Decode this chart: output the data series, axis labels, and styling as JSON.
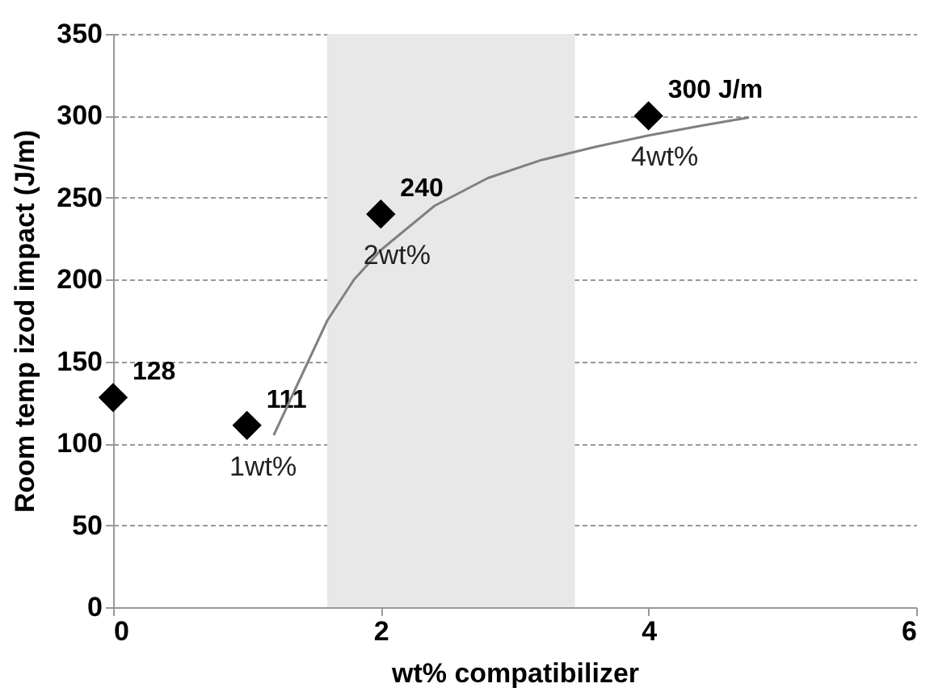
{
  "chart_data": {
    "type": "scatter",
    "xlabel": "wt% compatibilizer",
    "ylabel": "Room temp izod impact (J/m)",
    "x": [
      0,
      1,
      2,
      4
    ],
    "series": [
      {
        "color": "#000000",
        "marker": "diamond",
        "values": [
          128,
          111,
          240,
          300
        ],
        "value_labels": [
          "128",
          "111",
          "240",
          "300 J/m"
        ]
      },
      {
        "type": "line",
        "color": "#808080",
        "line_style": "solid",
        "x": [
          1.2,
          1.4,
          1.6,
          1.8,
          2.0,
          2.4,
          2.8,
          3.2,
          3.6,
          4.0,
          4.4,
          4.75
        ],
        "values": [
          105,
          140,
          175,
          200,
          218,
          245,
          262,
          273,
          281,
          288,
          294,
          299
        ]
      }
    ],
    "annotations": [
      {
        "text": "1wt%",
        "x": 1,
        "y": 111
      },
      {
        "text": "2wt%",
        "x": 2,
        "y": 240
      },
      {
        "text": "4wt%",
        "x": 4,
        "y": 300
      }
    ],
    "bands": [
      {
        "axis": "x",
        "from": 1.6,
        "to": 3.45,
        "color": "#e8e8e8"
      }
    ],
    "xlim": [
      0,
      6
    ],
    "xticks": [
      0,
      2,
      4,
      6
    ],
    "ylim": [
      0,
      350
    ],
    "yticks": [
      0,
      50,
      100,
      150,
      200,
      250,
      300,
      350
    ],
    "grid": "y"
  }
}
